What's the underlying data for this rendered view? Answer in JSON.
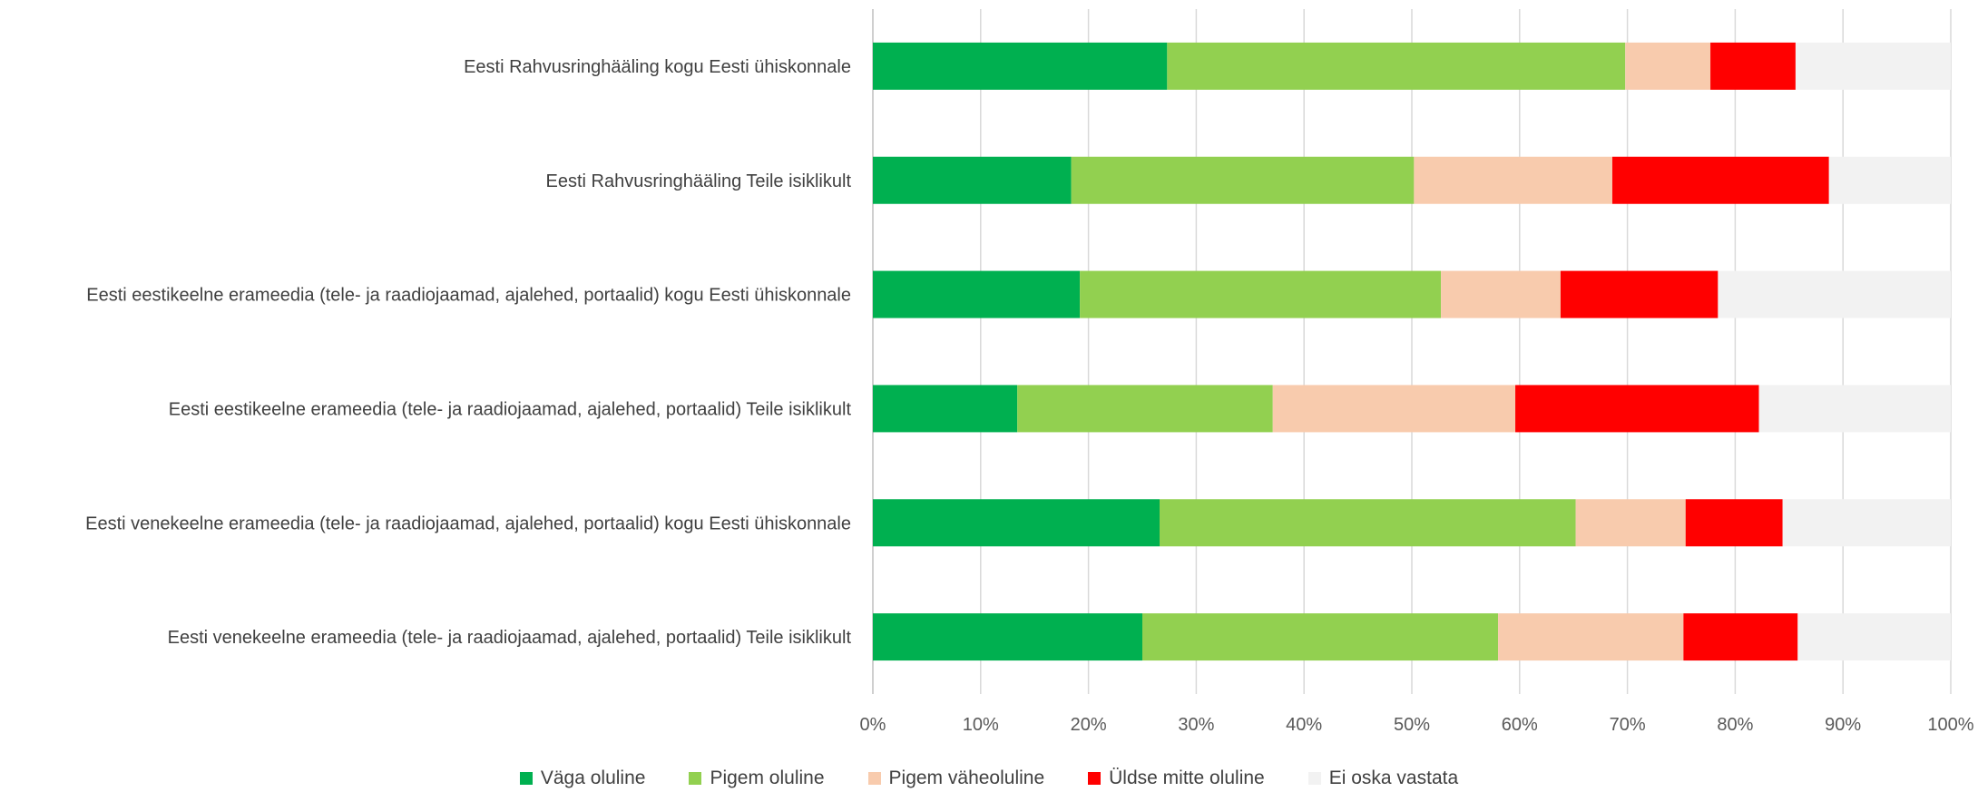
{
  "chart_data": {
    "type": "bar",
    "orientation": "horizontal",
    "stacked": "percent",
    "title": "",
    "xlabel": "",
    "ylabel": "",
    "xlim": [
      0,
      100
    ],
    "grid": true,
    "legend_position": "bottom",
    "categories": [
      "Eesti Rahvusringhääling kogu Eesti ühiskonnale",
      "Eesti Rahvusringhääling Teile isiklikult",
      "Eesti eestikeelne erameedia (tele- ja raadiojaamad, ajalehed, portaalid) kogu Eesti ühiskonnale",
      "Eesti eestikeelne erameedia (tele- ja raadiojaamad, ajalehed, portaalid) Teile isiklikult",
      "Eesti venekeelne erameedia (tele- ja raadiojaamad, ajalehed, portaalid) kogu Eesti ühiskonnale",
      "Eesti venekeelne erameedia (tele- ja raadiojaamad, ajalehed, portaalid) Teile isiklikult"
    ],
    "series": [
      {
        "name": "Väga oluline",
        "color": "#00B050",
        "values": [
          27.3,
          18.4,
          19.2,
          13.4,
          26.6,
          25.0
        ]
      },
      {
        "name": "Pigem oluline",
        "color": "#92D050",
        "values": [
          42.5,
          31.8,
          33.5,
          23.7,
          38.6,
          33.0
        ]
      },
      {
        "name": "Pigem väheoluline",
        "color": "#F8CBAD",
        "values": [
          7.9,
          18.4,
          11.1,
          22.5,
          10.2,
          17.2
        ]
      },
      {
        "name": "Üldse mitte oluline",
        "color": "#FF0000",
        "values": [
          7.9,
          20.1,
          14.6,
          22.6,
          9.0,
          10.6
        ]
      },
      {
        "name": "Ei oska vastata",
        "color": "#F2F2F2",
        "values": [
          14.4,
          11.3,
          21.6,
          17.8,
          15.6,
          14.2
        ]
      }
    ],
    "ticks": [
      "0%",
      "10%",
      "20%",
      "30%",
      "40%",
      "50%",
      "60%",
      "70%",
      "80%",
      "90%",
      "100%"
    ]
  }
}
